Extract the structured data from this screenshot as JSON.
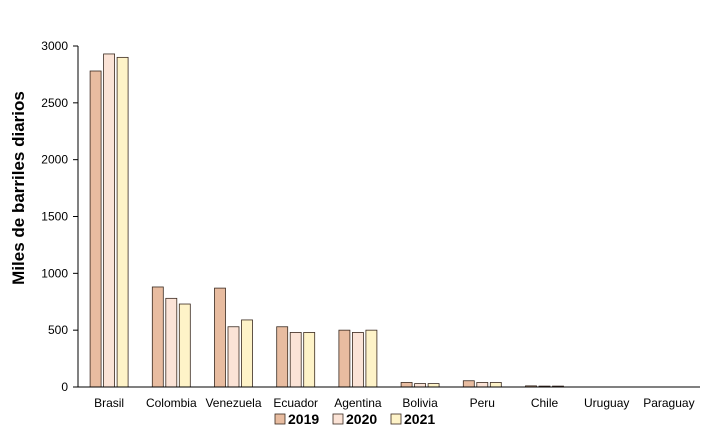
{
  "chart_data": {
    "type": "bar",
    "categories": [
      "Brasil",
      "Colombia",
      "Venezuela",
      "Ecuador",
      "Agentina",
      "Bolivia",
      "Peru",
      "Chile",
      "Uruguay",
      "Paraguay"
    ],
    "series": [
      {
        "name": "2019",
        "color": "#e8bca0",
        "values": [
          2780,
          880,
          870,
          530,
          500,
          40,
          55,
          10,
          0,
          0
        ]
      },
      {
        "name": "2020",
        "color": "#fbe3d6",
        "values": [
          2930,
          780,
          530,
          480,
          480,
          30,
          40,
          8,
          0,
          0
        ]
      },
      {
        "name": "2021",
        "color": "#fef3c8",
        "values": [
          2900,
          730,
          590,
          480,
          500,
          30,
          40,
          8,
          0,
          0
        ]
      }
    ],
    "ylabel": "Miles de  barriles diarios",
    "ylim": [
      0,
      3000
    ],
    "yticks": [
      0,
      500,
      1000,
      1500,
      2000,
      2500,
      3000
    ],
    "legend_position": "bottom",
    "grid": false
  }
}
